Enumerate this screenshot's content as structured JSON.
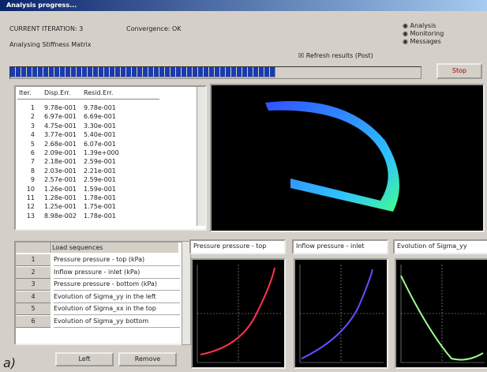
{
  "window": {
    "title": "Analysis progress..."
  },
  "header": {
    "line1": "CURRENT ITERATION: 3",
    "line2": "Analysing Stiffness Matrix",
    "status": "Convergence: OK",
    "refresh": "Refresh results (Post)",
    "options": [
      "Analysis",
      "Monitoring",
      "Messages"
    ],
    "stop_button": "Stop"
  },
  "list": {
    "columns": [
      "Iter.",
      "Disp.Err.",
      "Resid.Err."
    ],
    "rows": [
      [
        "1",
        "9.78e-001",
        "9.78e-001"
      ],
      [
        "2",
        "6.97e-001",
        "6.69e-001"
      ],
      [
        "3",
        "4.75e-001",
        "3.30e-001"
      ],
      [
        "4",
        "3.77e-001",
        "5.40e-001"
      ],
      [
        "5",
        "2.68e-001",
        "6.07e-001"
      ],
      [
        "6",
        "2.09e-001",
        "1.39e+000"
      ],
      [
        "7",
        "2.18e-001",
        "2.59e-001"
      ],
      [
        "8",
        "2.03e-001",
        "2.21e-001"
      ],
      [
        "9",
        "2.57e-001",
        "2.59e-001"
      ],
      [
        "10",
        "1.26e-001",
        "1.59e-001"
      ],
      [
        "11",
        "1.28e-001",
        "1.78e-001"
      ],
      [
        "12",
        "1.25e-001",
        "1.75e-001"
      ],
      [
        "13",
        "8.98e-002",
        "1.78e-001"
      ]
    ]
  },
  "grid": {
    "header": "Load sequences",
    "rows": [
      [
        "1",
        "Pressure pressure - top (kPa)"
      ],
      [
        "2",
        "Inflow pressure - inlet (kPa)"
      ],
      [
        "3",
        "Pressure pressure - bottom (kPa)"
      ],
      [
        "4",
        "Evolution of Sigma_yy in the left"
      ],
      [
        "5",
        "Evolution of Sigma_xx in the top"
      ],
      [
        "6",
        "Evolution of Sigma_yy bottom"
      ]
    ]
  },
  "graphs": [
    "Pressure pressure - top",
    "Inflow pressure - inlet",
    "Evolution of Sigma_yy"
  ],
  "buttons": [
    "Left",
    "Remove"
  ],
  "caption": "a)"
}
